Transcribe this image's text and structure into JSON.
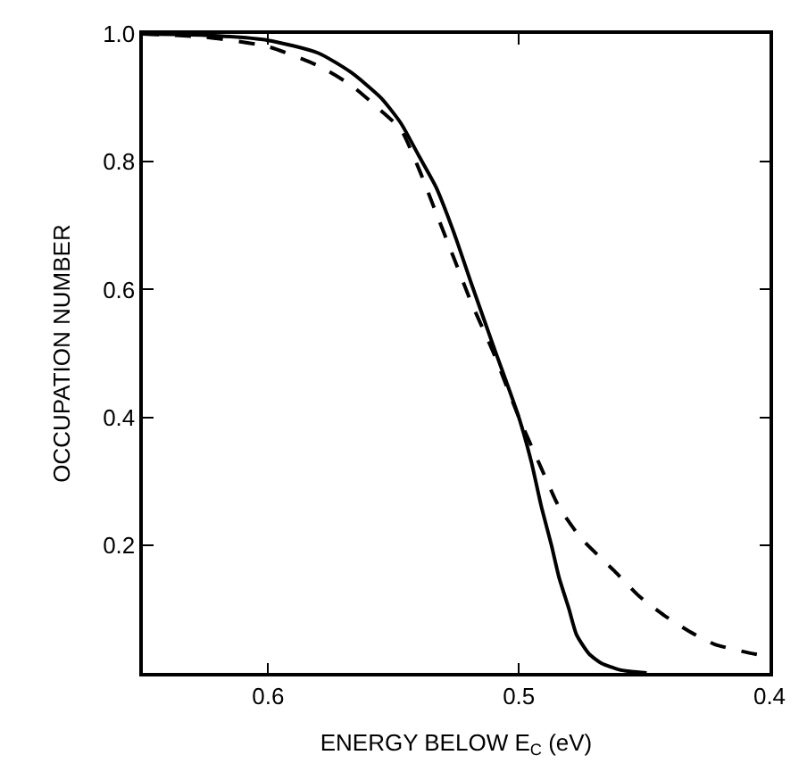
{
  "chart_data": {
    "type": "line",
    "xlabel": "ENERGY BELOW E$_{C}$ (eV)",
    "ylabel": "OCCUPATION NUMBER",
    "xlim": [
      0.65,
      0.4
    ],
    "ylim": [
      0,
      1.0
    ],
    "xticks": [
      0.6,
      0.5,
      0.4
    ],
    "yticks": [
      {
        "value": 0.2,
        "label": "0.2"
      },
      {
        "value": 0.4,
        "label": "0.4"
      },
      {
        "value": 0.6,
        "label": "0.6"
      },
      {
        "value": 0.8,
        "label": "0.8"
      },
      {
        "value": 1.0,
        "label": "1.0"
      }
    ],
    "series": [
      {
        "color": "#000000",
        "line_style": "solid",
        "x": [
          0.65,
          0.625,
          0.6,
          0.58,
          0.567,
          0.555,
          0.547,
          0.54,
          0.533,
          0.526,
          0.519,
          0.51,
          0.5,
          0.495,
          0.491,
          0.487,
          0.484,
          0.48,
          0.477,
          0.472,
          0.467,
          0.46,
          0.455,
          0.449
        ],
        "values": [
          1.0,
          0.998,
          0.99,
          0.97,
          0.94,
          0.9,
          0.86,
          0.81,
          0.76,
          0.69,
          0.61,
          0.51,
          0.4,
          0.33,
          0.26,
          0.2,
          0.15,
          0.1,
          0.06,
          0.03,
          0.015,
          0.005,
          0.002,
          0.0
        ]
      },
      {
        "color": "#000000",
        "line_style": "dashed",
        "x": [
          0.65,
          0.625,
          0.6,
          0.58,
          0.567,
          0.555,
          0.547,
          0.54,
          0.533,
          0.526,
          0.519,
          0.51,
          0.5,
          0.491,
          0.484,
          0.475,
          0.462,
          0.452,
          0.442,
          0.432,
          0.422,
          0.41,
          0.4
        ],
        "values": [
          1.0,
          0.995,
          0.98,
          0.95,
          0.92,
          0.88,
          0.85,
          0.79,
          0.72,
          0.65,
          0.58,
          0.5,
          0.4,
          0.32,
          0.26,
          0.21,
          0.16,
          0.12,
          0.09,
          0.065,
          0.045,
          0.033,
          0.025
        ]
      }
    ]
  }
}
